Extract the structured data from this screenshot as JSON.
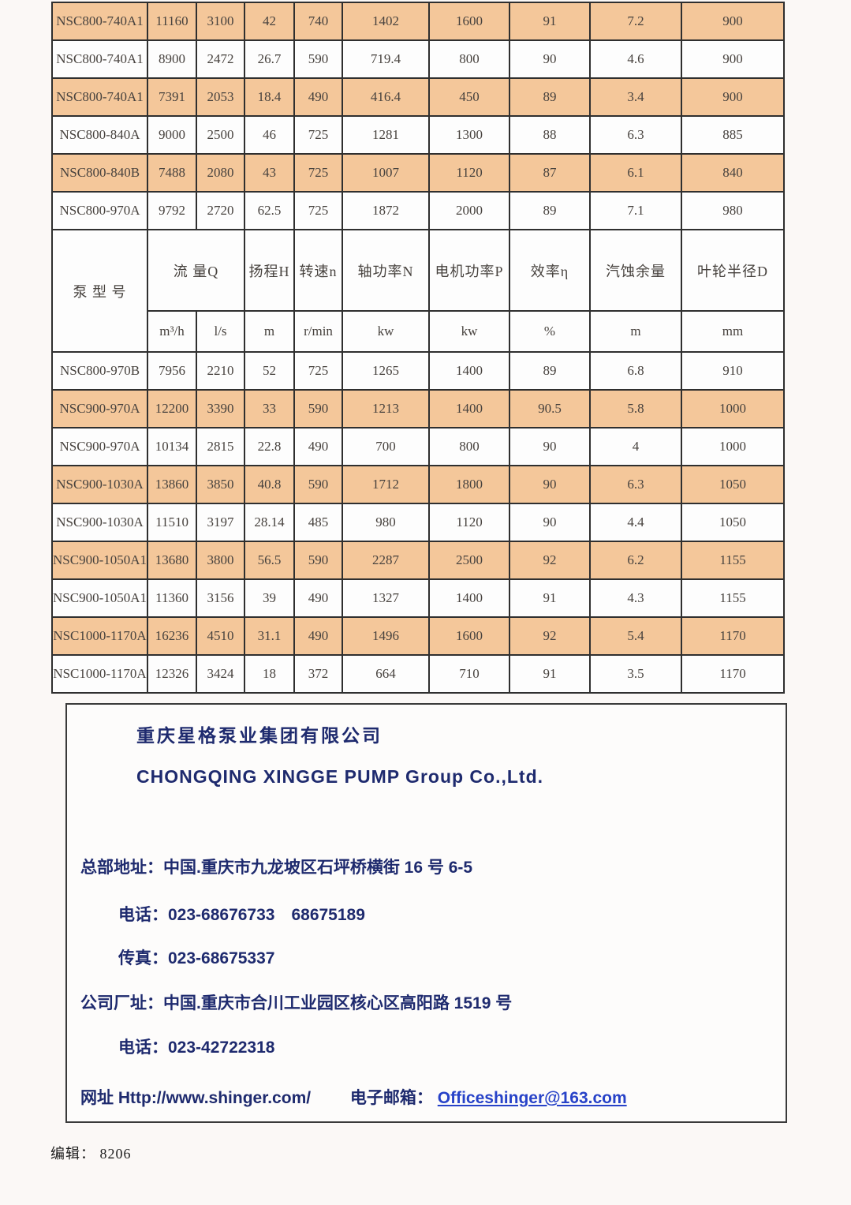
{
  "page": {
    "edit_label": "编辑：",
    "edit_value": "8206"
  },
  "colors": {
    "row_shaded": "#f4c79a",
    "row_plain": "#fdfdfd",
    "border": "#2f2f2f",
    "table_text": "#47423e",
    "info_text": "#1e2a6e",
    "email_link": "#2742c8"
  },
  "table": {
    "header": {
      "pump_model": "泵 型 号",
      "flow": "流 量Q",
      "head": "扬程H",
      "speed": "转速n",
      "shaft_power": "轴功率N",
      "motor_power": "电机功率P",
      "efficiency": "效率η",
      "npsh": "汽蚀余量",
      "impeller_radius": "叶轮半径D",
      "units": [
        "m³/h",
        "l/s",
        "m",
        "r/min",
        "kw",
        "kw",
        "%",
        "m",
        "mm"
      ]
    },
    "rows_top": [
      {
        "model": "NSC800-740A1",
        "values": [
          "11160",
          "3100",
          "42",
          "740",
          "1402",
          "1600",
          "91",
          "7.2",
          "900"
        ],
        "shaded": true
      },
      {
        "model": "NSC800-740A1",
        "values": [
          "8900",
          "2472",
          "26.7",
          "590",
          "719.4",
          "800",
          "90",
          "4.6",
          "900"
        ],
        "shaded": false
      },
      {
        "model": "NSC800-740A1",
        "values": [
          "7391",
          "2053",
          "18.4",
          "490",
          "416.4",
          "450",
          "89",
          "3.4",
          "900"
        ],
        "shaded": true
      },
      {
        "model": "NSC800-840A",
        "values": [
          "9000",
          "2500",
          "46",
          "725",
          "1281",
          "1300",
          "88",
          "6.3",
          "885"
        ],
        "shaded": false
      },
      {
        "model": "NSC800-840B",
        "values": [
          "7488",
          "2080",
          "43",
          "725",
          "1007",
          "1120",
          "87",
          "6.1",
          "840"
        ],
        "shaded": true
      },
      {
        "model": "NSC800-970A",
        "values": [
          "9792",
          "2720",
          "62.5",
          "725",
          "1872",
          "2000",
          "89",
          "7.1",
          "980"
        ],
        "shaded": false
      }
    ],
    "rows_bottom": [
      {
        "model": "NSC800-970B",
        "values": [
          "7956",
          "2210",
          "52",
          "725",
          "1265",
          "1400",
          "89",
          "6.8",
          "910"
        ],
        "shaded": false
      },
      {
        "model": "NSC900-970A",
        "values": [
          "12200",
          "3390",
          "33",
          "590",
          "1213",
          "1400",
          "90.5",
          "5.8",
          "1000"
        ],
        "shaded": true
      },
      {
        "model": "NSC900-970A",
        "values": [
          "10134",
          "2815",
          "22.8",
          "490",
          "700",
          "800",
          "90",
          "4",
          "1000"
        ],
        "shaded": false
      },
      {
        "model": "NSC900-1030A",
        "values": [
          "13860",
          "3850",
          "40.8",
          "590",
          "1712",
          "1800",
          "90",
          "6.3",
          "1050"
        ],
        "shaded": true
      },
      {
        "model": "NSC900-1030A",
        "values": [
          "11510",
          "3197",
          "28.14",
          "485",
          "980",
          "1120",
          "90",
          "4.4",
          "1050"
        ],
        "shaded": false
      },
      {
        "model": "NSC900-1050A1",
        "values": [
          "13680",
          "3800",
          "56.5",
          "590",
          "2287",
          "2500",
          "92",
          "6.2",
          "1155"
        ],
        "shaded": true
      },
      {
        "model": "NSC900-1050A1",
        "values": [
          "11360",
          "3156",
          "39",
          "490",
          "1327",
          "1400",
          "91",
          "4.3",
          "1155"
        ],
        "shaded": false
      },
      {
        "model": "NSC1000-1170A",
        "values": [
          "16236",
          "4510",
          "31.1",
          "490",
          "1496",
          "1600",
          "92",
          "5.4",
          "1170"
        ],
        "shaded": true
      },
      {
        "model": "NSC1000-1170A",
        "values": [
          "12326",
          "3424",
          "18",
          "372",
          "664",
          "710",
          "91",
          "3.5",
          "1170"
        ],
        "shaded": false
      }
    ]
  },
  "company": {
    "name_cn": "重庆星格泵业集团有限公司",
    "name_en": "CHONGQING XINGGE PUMP Group Co.,Ltd.",
    "hq_line": "总部地址：中国.重庆市九龙坡区石坪桥横街 16 号 6-5",
    "tel1_line": "电话：023-68676733　68675189",
    "fax_line": "传真：023-68675337",
    "factory_line": "公司厂址：中国.重庆市合川工业园区核心区高阳路 1519 号",
    "tel2_line": "电话：023-42722318",
    "web_line": "网址 Http://www.shinger.com/",
    "email_label": "电子邮箱：",
    "email_value": "Officeshinger@163.com"
  }
}
